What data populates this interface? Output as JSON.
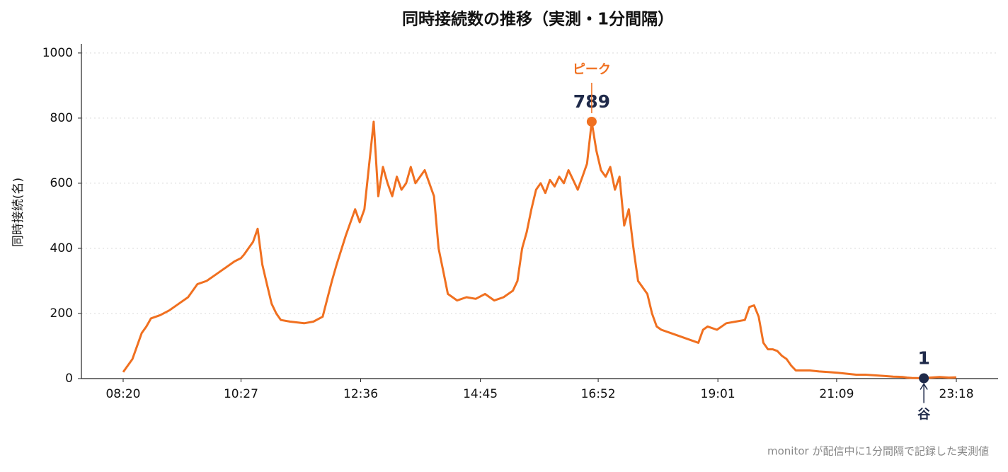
{
  "chart_data": {
    "type": "line",
    "title": "同時接続数の推移（実測・1分間隔）",
    "y_label": "同時接続(名)",
    "note": "monitor が配信中に1分間隔で記録した実測値",
    "x": [
      500,
      510,
      520,
      525,
      530,
      540,
      550,
      560,
      570,
      580,
      590,
      600,
      610,
      620,
      627,
      630,
      640,
      645,
      650,
      655,
      660,
      665,
      670,
      680,
      695,
      705,
      715,
      725,
      730,
      740,
      750,
      755,
      760,
      770,
      775,
      780,
      785,
      790,
      795,
      800,
      805,
      810,
      815,
      820,
      825,
      830,
      835,
      840,
      845,
      850,
      855,
      860,
      870,
      880,
      890,
      900,
      910,
      920,
      925,
      930,
      935,
      940,
      945,
      950,
      955,
      960,
      965,
      970,
      975,
      980,
      985,
      990,
      995,
      1000,
      1005,
      1010,
      1015,
      1020,
      1025,
      1030,
      1035,
      1040,
      1045,
      1050,
      1055,
      1060,
      1065,
      1070,
      1075,
      1080,
      1090,
      1100,
      1110,
      1120,
      1125,
      1130,
      1140,
      1150,
      1160,
      1170,
      1175,
      1180,
      1185,
      1190,
      1195,
      1200,
      1205,
      1210,
      1215,
      1220,
      1225,
      1230,
      1240,
      1250,
      1260,
      1270,
      1280,
      1290,
      1300,
      1310,
      1320,
      1330,
      1340,
      1345,
      1350,
      1363,
      1370,
      1380,
      1390,
      1398
    ],
    "series": [
      {
        "name": "同時接続",
        "color": "#f07020",
        "values": [
          20,
          60,
          140,
          160,
          185,
          195,
          210,
          230,
          250,
          290,
          300,
          320,
          340,
          360,
          370,
          380,
          420,
          460,
          350,
          290,
          230,
          200,
          180,
          175,
          170,
          175,
          190,
          300,
          350,
          440,
          520,
          480,
          520,
          789,
          560,
          650,
          600,
          560,
          620,
          580,
          600,
          650,
          600,
          620,
          640,
          600,
          560,
          400,
          330,
          260,
          250,
          240,
          250,
          245,
          260,
          240,
          250,
          270,
          300,
          400,
          450,
          520,
          580,
          600,
          570,
          610,
          590,
          620,
          600,
          640,
          610,
          580,
          620,
          660,
          789,
          700,
          640,
          620,
          650,
          580,
          620,
          470,
          520,
          400,
          300,
          280,
          260,
          200,
          160,
          150,
          140,
          130,
          120,
          110,
          150,
          160,
          150,
          170,
          175,
          180,
          220,
          225,
          190,
          110,
          90,
          90,
          85,
          70,
          60,
          40,
          25,
          25,
          25,
          22,
          20,
          18,
          15,
          12,
          12,
          10,
          8,
          6,
          5,
          3,
          2,
          1,
          3,
          5,
          3,
          4
        ]
      }
    ],
    "xlim": [
      455,
      1443
    ],
    "ylim": [
      0,
      1028
    ],
    "xticks": [
      {
        "value": 500,
        "label": "08:20"
      },
      {
        "value": 627,
        "label": "10:27"
      },
      {
        "value": 756,
        "label": "12:36"
      },
      {
        "value": 885,
        "label": "14:45"
      },
      {
        "value": 1012,
        "label": "16:52"
      },
      {
        "value": 1141,
        "label": "19:01"
      },
      {
        "value": 1269,
        "label": "21:09"
      },
      {
        "value": 1398,
        "label": "23:18"
      }
    ],
    "yticks": [
      0,
      200,
      400,
      600,
      800,
      1000
    ],
    "grid": true,
    "annotations": [
      {
        "text": "ピーク",
        "x": 1005,
        "value": 789,
        "color": "#f07020"
      },
      {
        "text": "谷",
        "x": 1363,
        "value": 1,
        "color": "#1f2a4a"
      }
    ]
  }
}
